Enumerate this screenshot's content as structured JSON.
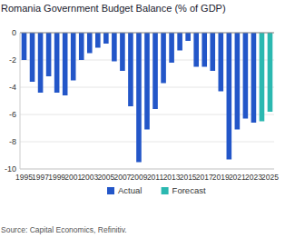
{
  "chart_data": {
    "type": "bar",
    "title": "Romania Government Budget Balance (% of GDP)",
    "source": "Source: Capital Economics, Refinitiv.",
    "categories": [
      "1995",
      null,
      "1997",
      null,
      "1999",
      null,
      "2001",
      null,
      "2003",
      null,
      "2005",
      null,
      "2007",
      null,
      "2009",
      null,
      "2011",
      null,
      "2013",
      null,
      "2015",
      null,
      "2017",
      null,
      "2019",
      null,
      "2021",
      null,
      "2023",
      null,
      "2025"
    ],
    "series": [
      {
        "name": "Actual",
        "color": "#2356c8",
        "values": [
          -2.0,
          -3.6,
          -4.4,
          -3.2,
          -4.4,
          -4.6,
          -3.5,
          -2.0,
          -1.5,
          -1.1,
          -0.8,
          -2.1,
          -2.8,
          -5.4,
          -9.5,
          -7.1,
          -5.6,
          -3.7,
          -2.2,
          -1.3,
          -0.6,
          -2.5,
          -2.5,
          -2.8,
          -4.3,
          -9.3,
          -7.1,
          -6.3,
          -6.6,
          null,
          null
        ]
      },
      {
        "name": "Forecast",
        "color": "#2bb8b0",
        "values": [
          null,
          null,
          null,
          null,
          null,
          null,
          null,
          null,
          null,
          null,
          null,
          null,
          null,
          null,
          null,
          null,
          null,
          null,
          null,
          null,
          null,
          null,
          null,
          null,
          null,
          null,
          null,
          null,
          null,
          -6.5,
          -5.8
        ]
      }
    ],
    "stacked": true,
    "ylim": [
      -10,
      0
    ],
    "yticks": [
      -10,
      -8,
      -6,
      -4,
      -2,
      0
    ],
    "grid": true,
    "legend": "bottom"
  }
}
